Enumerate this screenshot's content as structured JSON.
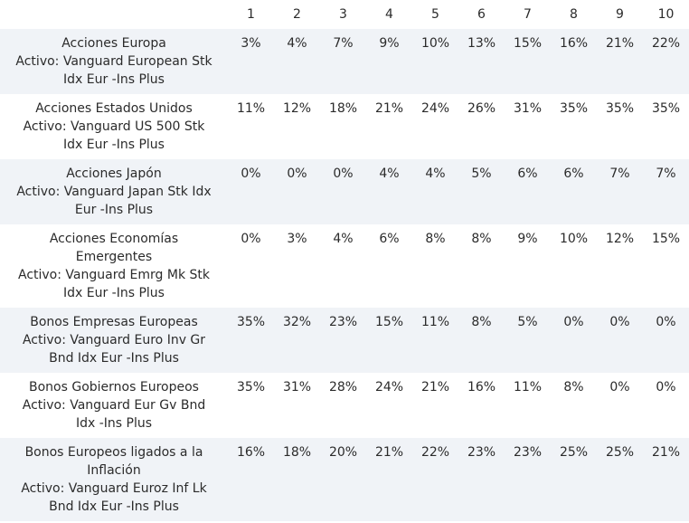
{
  "columns": [
    "1",
    "2",
    "3",
    "4",
    "5",
    "6",
    "7",
    "8",
    "9",
    "10"
  ],
  "rows": [
    {
      "name": "Acciones Europa",
      "asset": "Activo: Vanguard European Stk Idx Eur -Ins Plus",
      "values": [
        "3%",
        "4%",
        "7%",
        "9%",
        "10%",
        "13%",
        "15%",
        "16%",
        "21%",
        "22%"
      ]
    },
    {
      "name": "Acciones Estados Unidos",
      "asset": "Activo: Vanguard US 500 Stk Idx Eur -Ins Plus",
      "values": [
        "11%",
        "12%",
        "18%",
        "21%",
        "24%",
        "26%",
        "31%",
        "35%",
        "35%",
        "35%"
      ]
    },
    {
      "name": "Acciones Japón",
      "asset": "Activo: Vanguard Japan Stk Idx Eur -Ins Plus",
      "values": [
        "0%",
        "0%",
        "0%",
        "4%",
        "4%",
        "5%",
        "6%",
        "6%",
        "7%",
        "7%"
      ]
    },
    {
      "name": "Acciones Economías Emergentes",
      "asset": "Activo: Vanguard Emrg Mk Stk Idx Eur -Ins Plus",
      "values": [
        "0%",
        "3%",
        "4%",
        "6%",
        "8%",
        "8%",
        "9%",
        "10%",
        "12%",
        "15%"
      ]
    },
    {
      "name": "Bonos Empresas Europeas",
      "asset": "Activo: Vanguard Euro Inv Gr Bnd Idx Eur -Ins Plus",
      "values": [
        "35%",
        "32%",
        "23%",
        "15%",
        "11%",
        "8%",
        "5%",
        "0%",
        "0%",
        "0%"
      ]
    },
    {
      "name": "Bonos Gobiernos Europeos",
      "asset": "Activo: Vanguard Eur Gv Bnd Idx -Ins Plus",
      "values": [
        "35%",
        "31%",
        "28%",
        "24%",
        "21%",
        "16%",
        "11%",
        "8%",
        "0%",
        "0%"
      ]
    },
    {
      "name": "Bonos Europeos ligados a la Inflación",
      "asset": "Activo: Vanguard Euroz Inf Lk Bnd Idx Eur -Ins Plus",
      "values": [
        "16%",
        "18%",
        "20%",
        "21%",
        "22%",
        "23%",
        "23%",
        "25%",
        "25%",
        "21%"
      ]
    }
  ]
}
